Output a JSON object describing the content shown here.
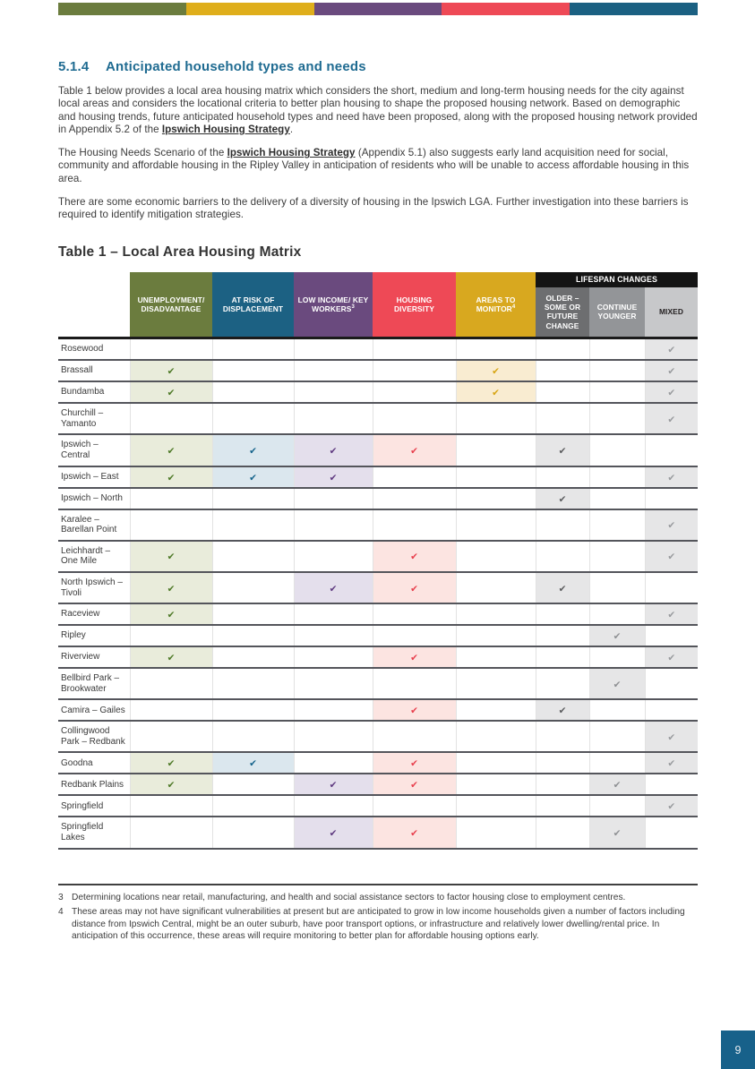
{
  "page": {
    "section_number": "5.1.4",
    "section_title": "Anticipated household types and needs",
    "page_number": "9",
    "top_bar_colors": [
      "#6b7c3e",
      "#dfae1b",
      "#6a4a7e",
      "#ee4956",
      "#1b6082"
    ],
    "accent_heading_color": "#1f6b91"
  },
  "paragraphs": {
    "p1": {
      "pre": "Table 1 below provides a local area housing matrix which considers the short, medium and long-term housing needs for the city against local areas and considers the locational criteria to better plan housing to shape the proposed housing network. Based on demographic and housing trends, future anticipated household types and need have been proposed, along with the proposed housing network provided in Appendix 5.2 of the ",
      "link": "Ipswich Housing Strategy",
      "post": "."
    },
    "p2": {
      "pre": "The Housing Needs Scenario of the ",
      "link": "Ipswich Housing Strategy",
      "post": " (Appendix 5.1) also suggests early land acquisition need for social, community and affordable housing in the Ripley Valley in anticipation of residents who will be unable to access affordable housing in this area."
    },
    "p3": {
      "text": "There are some economic barriers to the delivery of a diversity of housing in the Ipswich LGA. Further investigation into these barriers is required to identify mitigation strategies."
    }
  },
  "table": {
    "title": "Table 1 – Local Area Housing Matrix",
    "lifespan_label": "LIFESPAN CHANGES",
    "lifespan_bg": "#141414",
    "check_glyph": "✔",
    "columns": [
      {
        "key": "unemployment",
        "label": "UNEMPLOYMENT/ DISADVANTAGE",
        "header_bg": "#6b7c3e",
        "tint": "#e9ecdb",
        "check_color": "#4f7a28"
      },
      {
        "key": "displacement",
        "label": "AT RISK OF DISPLACEMENT",
        "header_bg": "#1c6183",
        "tint": "#dbe7ee",
        "check_color": "#16648c"
      },
      {
        "key": "low_income",
        "label": "LOW INCOME/ KEY WORKERS",
        "sup": "3",
        "header_bg": "#6a4a7e",
        "tint": "#e4dfec",
        "check_color": "#5f3a80"
      },
      {
        "key": "diversity",
        "label": "HOUSING DIVERSITY",
        "header_bg": "#ee4956",
        "tint": "#fce4e1",
        "check_color": "#e8404e"
      },
      {
        "key": "monitor",
        "label": "AREAS TO MONITOR",
        "sup": "4",
        "header_bg": "#d8a81f",
        "tint": "#f9ecd1",
        "check_color": "#d7a513"
      },
      {
        "key": "older",
        "label": "OLDER – SOME OR FUTURE CHANGE",
        "header_bg": "#6d6e70",
        "tint": "#e6e6e7",
        "check_color": "#5b5c5e",
        "lifespan": true
      },
      {
        "key": "younger",
        "label": "CONTINUE YOUNGER",
        "header_bg": "#939598",
        "tint": "#e6e6e7",
        "check_color": "#8f9194",
        "lifespan": true
      },
      {
        "key": "mixed",
        "label": "MIXED",
        "header_bg": "#c7c8ca",
        "header_text": "#231f20",
        "tint": "#e6e6e7",
        "check_color": "#999b9e",
        "lifespan": true
      }
    ],
    "rows": [
      {
        "area": "Rosewood",
        "checks": [
          "mixed"
        ]
      },
      {
        "area": "Brassall",
        "checks": [
          "unemployment",
          "monitor",
          "mixed"
        ]
      },
      {
        "area": "Bundamba",
        "checks": [
          "unemployment",
          "monitor",
          "mixed"
        ]
      },
      {
        "area": "Churchill – Yamanto",
        "checks": [
          "mixed"
        ]
      },
      {
        "area": "Ipswich – Central",
        "checks": [
          "unemployment",
          "displacement",
          "low_income",
          "diversity",
          "older"
        ]
      },
      {
        "area": "Ipswich – East",
        "checks": [
          "unemployment",
          "displacement",
          "low_income",
          "mixed"
        ]
      },
      {
        "area": "Ipswich – North",
        "checks": [
          "older"
        ]
      },
      {
        "area": "Karalee – Barellan Point",
        "checks": [
          "mixed"
        ]
      },
      {
        "area": "Leichhardt – One Mile",
        "checks": [
          "unemployment",
          "diversity",
          "mixed"
        ]
      },
      {
        "area": "North Ipswich – Tivoli",
        "checks": [
          "unemployment",
          "low_income",
          "diversity",
          "older"
        ]
      },
      {
        "area": "Raceview",
        "checks": [
          "unemployment",
          "mixed"
        ]
      },
      {
        "area": "Ripley",
        "checks": [
          "younger"
        ]
      },
      {
        "area": "Riverview",
        "checks": [
          "unemployment",
          "diversity",
          "mixed"
        ]
      },
      {
        "area": "Bellbird Park – Brookwater",
        "checks": [
          "younger"
        ]
      },
      {
        "area": "Camira – Gailes",
        "checks": [
          "diversity",
          "older"
        ]
      },
      {
        "area": "Collingwood Park – Redbank",
        "checks": [
          "mixed"
        ]
      },
      {
        "area": "Goodna",
        "checks": [
          "unemployment",
          "displacement",
          "diversity",
          "mixed"
        ]
      },
      {
        "area": "Redbank Plains",
        "checks": [
          "unemployment",
          "low_income",
          "diversity",
          "younger"
        ]
      },
      {
        "area": "Springfield",
        "checks": [
          "mixed"
        ]
      },
      {
        "area": "Springfield Lakes",
        "checks": [
          "low_income",
          "diversity",
          "younger"
        ]
      }
    ]
  },
  "footnotes": [
    {
      "num": "3",
      "text": "Determining locations near retail, manufacturing, and health and social assistance sectors to factor housing close to employment centres."
    },
    {
      "num": "4",
      "text": "These areas may not have significant vulnerabilities at present but are anticipated to grow in low income households given a number of factors including distance from Ipswich Central, might be an outer suburb, have poor transport options, or infrastructure and relatively lower dwelling/rental price. In anticipation of this occurrence, these areas will require monitoring to better plan for affordable housing options early."
    }
  ]
}
